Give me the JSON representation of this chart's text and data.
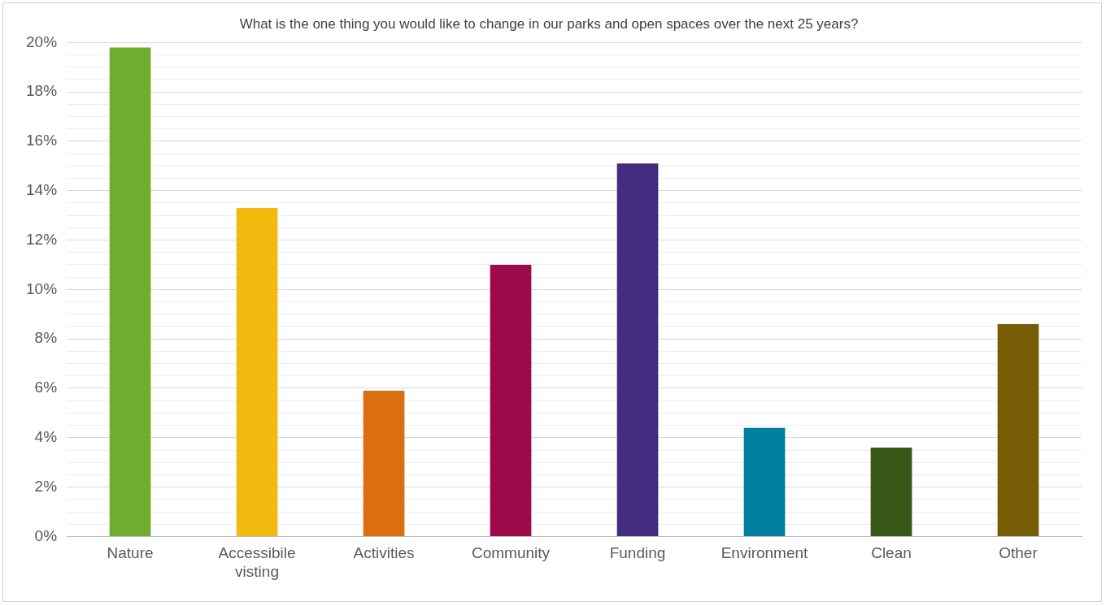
{
  "chart_data": {
    "type": "bar",
    "title": "What is the one thing you would like to change in our parks and open spaces over the next 25 years?",
    "categories": [
      "Nature",
      "Accessibile visting",
      "Activities",
      "Community",
      "Funding",
      "Environment",
      "Clean",
      "Other"
    ],
    "values": [
      19.8,
      13.3,
      5.9,
      11.0,
      15.1,
      4.4,
      3.6,
      8.6
    ],
    "colors": [
      "#70ad2e",
      "#f2b90f",
      "#dc6d10",
      "#9c0a4c",
      "#432c80",
      "#00809e",
      "#375716",
      "#765c05"
    ],
    "ylim": [
      0,
      20
    ],
    "yticks": [
      {
        "value": 0,
        "label": "0%"
      },
      {
        "value": 0.5,
        "label": null
      },
      {
        "value": 1,
        "label": null
      },
      {
        "value": 1.5,
        "label": null
      },
      {
        "value": 2,
        "label": "2%"
      },
      {
        "value": 2.5,
        "label": null
      },
      {
        "value": 3,
        "label": null
      },
      {
        "value": 3.5,
        "label": null
      },
      {
        "value": 4,
        "label": "4%"
      },
      {
        "value": 4.5,
        "label": null
      },
      {
        "value": 5,
        "label": null
      },
      {
        "value": 5.5,
        "label": null
      },
      {
        "value": 6,
        "label": "6%"
      },
      {
        "value": 6.5,
        "label": null
      },
      {
        "value": 7,
        "label": null
      },
      {
        "value": 7.5,
        "label": null
      },
      {
        "value": 8,
        "label": "8%"
      },
      {
        "value": 8.5,
        "label": null
      },
      {
        "value": 9,
        "label": null
      },
      {
        "value": 9.5,
        "label": null
      },
      {
        "value": 10,
        "label": "10%"
      },
      {
        "value": 10.5,
        "label": null
      },
      {
        "value": 11,
        "label": null
      },
      {
        "value": 11.5,
        "label": null
      },
      {
        "value": 12,
        "label": "12%"
      },
      {
        "value": 12.5,
        "label": null
      },
      {
        "value": 13,
        "label": null
      },
      {
        "value": 13.5,
        "label": null
      },
      {
        "value": 14,
        "label": "14%"
      },
      {
        "value": 14.5,
        "label": null
      },
      {
        "value": 15,
        "label": null
      },
      {
        "value": 15.5,
        "label": null
      },
      {
        "value": 16,
        "label": "16%"
      },
      {
        "value": 16.5,
        "label": null
      },
      {
        "value": 17,
        "label": null
      },
      {
        "value": 17.5,
        "label": null
      },
      {
        "value": 18,
        "label": "18%"
      },
      {
        "value": 18.5,
        "label": null
      },
      {
        "value": 19,
        "label": null
      },
      {
        "value": 19.5,
        "label": null
      },
      {
        "value": 20,
        "label": "20%"
      }
    ],
    "grid": "y",
    "legend": false
  }
}
